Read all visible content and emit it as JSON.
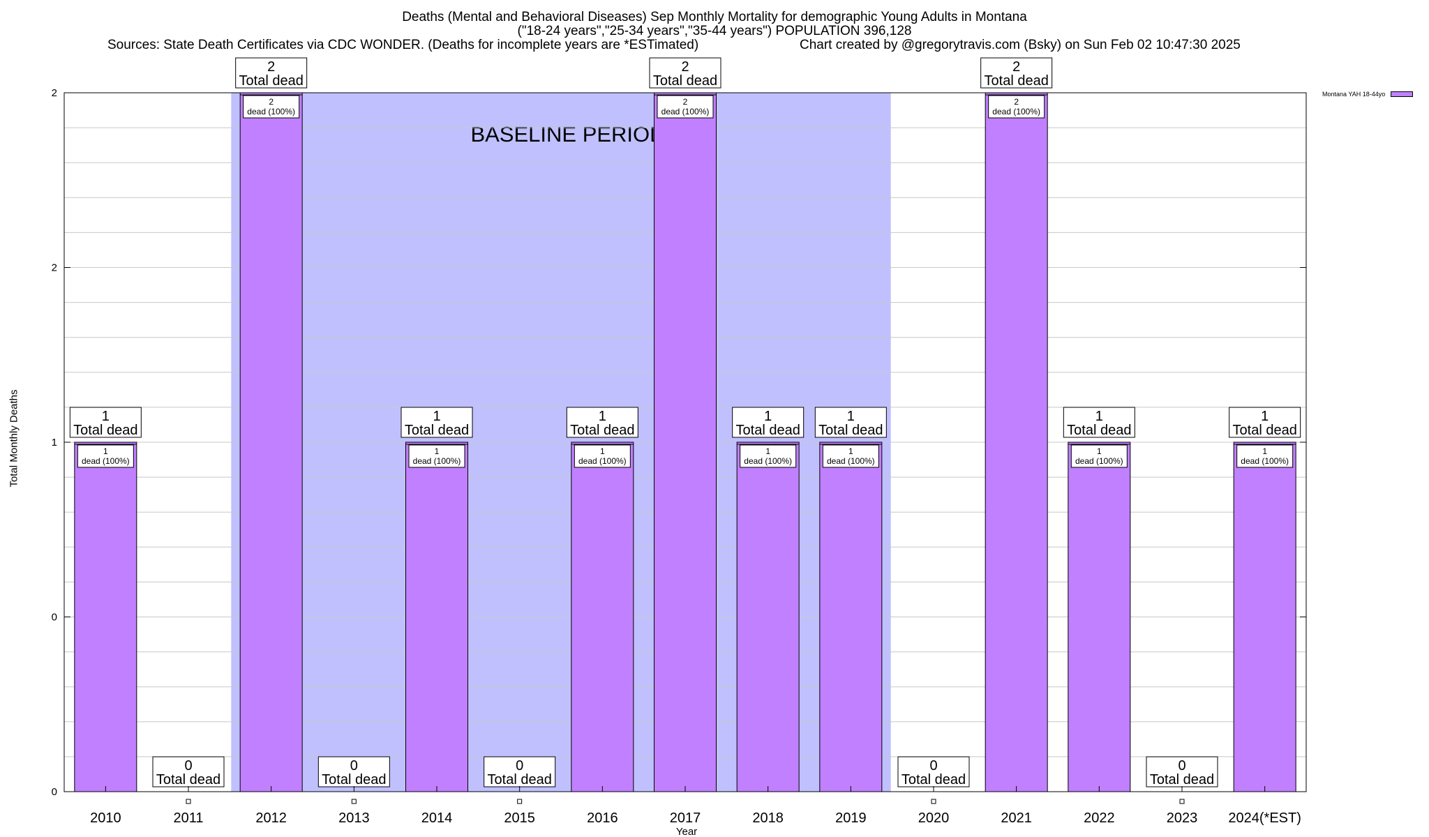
{
  "header": {
    "title_line1": "Deaths (Mental and Behavioral Diseases) Sep Monthly Mortality for demographic Young Adults in Montana",
    "title_line2": "(\"18-24 years\",\"25-34 years\",\"35-44 years\") POPULATION 396,128",
    "sources": "Sources: State Death Certificates via CDC WONDER. (Deaths for incomplete years are *ESTimated)",
    "credit": "Chart created by @gregorytravis.com (Bsky) on Sun Feb 02 10:47:30 2025"
  },
  "chart_data": {
    "type": "bar",
    "xlabel": "Year",
    "ylabel": "Total Monthly Deaths",
    "ylim": [
      0,
      2
    ],
    "y_tick_labels": [
      "0",
      "0",
      "1",
      "2",
      "2"
    ],
    "categories": [
      "2010",
      "2011",
      "2012",
      "2013",
      "2014",
      "2015",
      "2016",
      "2017",
      "2018",
      "2019",
      "2020",
      "2021",
      "2022",
      "2023",
      "2024(*EST)"
    ],
    "series": [
      {
        "name": "Montana YAH 18-44yo",
        "color": "#c080ff",
        "values": [
          1,
          0,
          2,
          0,
          1,
          0,
          1,
          2,
          1,
          1,
          0,
          2,
          1,
          0,
          1
        ]
      }
    ],
    "total_label_suffix": "Total dead",
    "inner_label_suffix": "dead (100%)",
    "baseline": {
      "label": "BASELINE PERIOD",
      "from_category": "2012",
      "to_category": "2019",
      "color": "#c0c0ff"
    },
    "grid": true,
    "legend_position": "top-right"
  }
}
